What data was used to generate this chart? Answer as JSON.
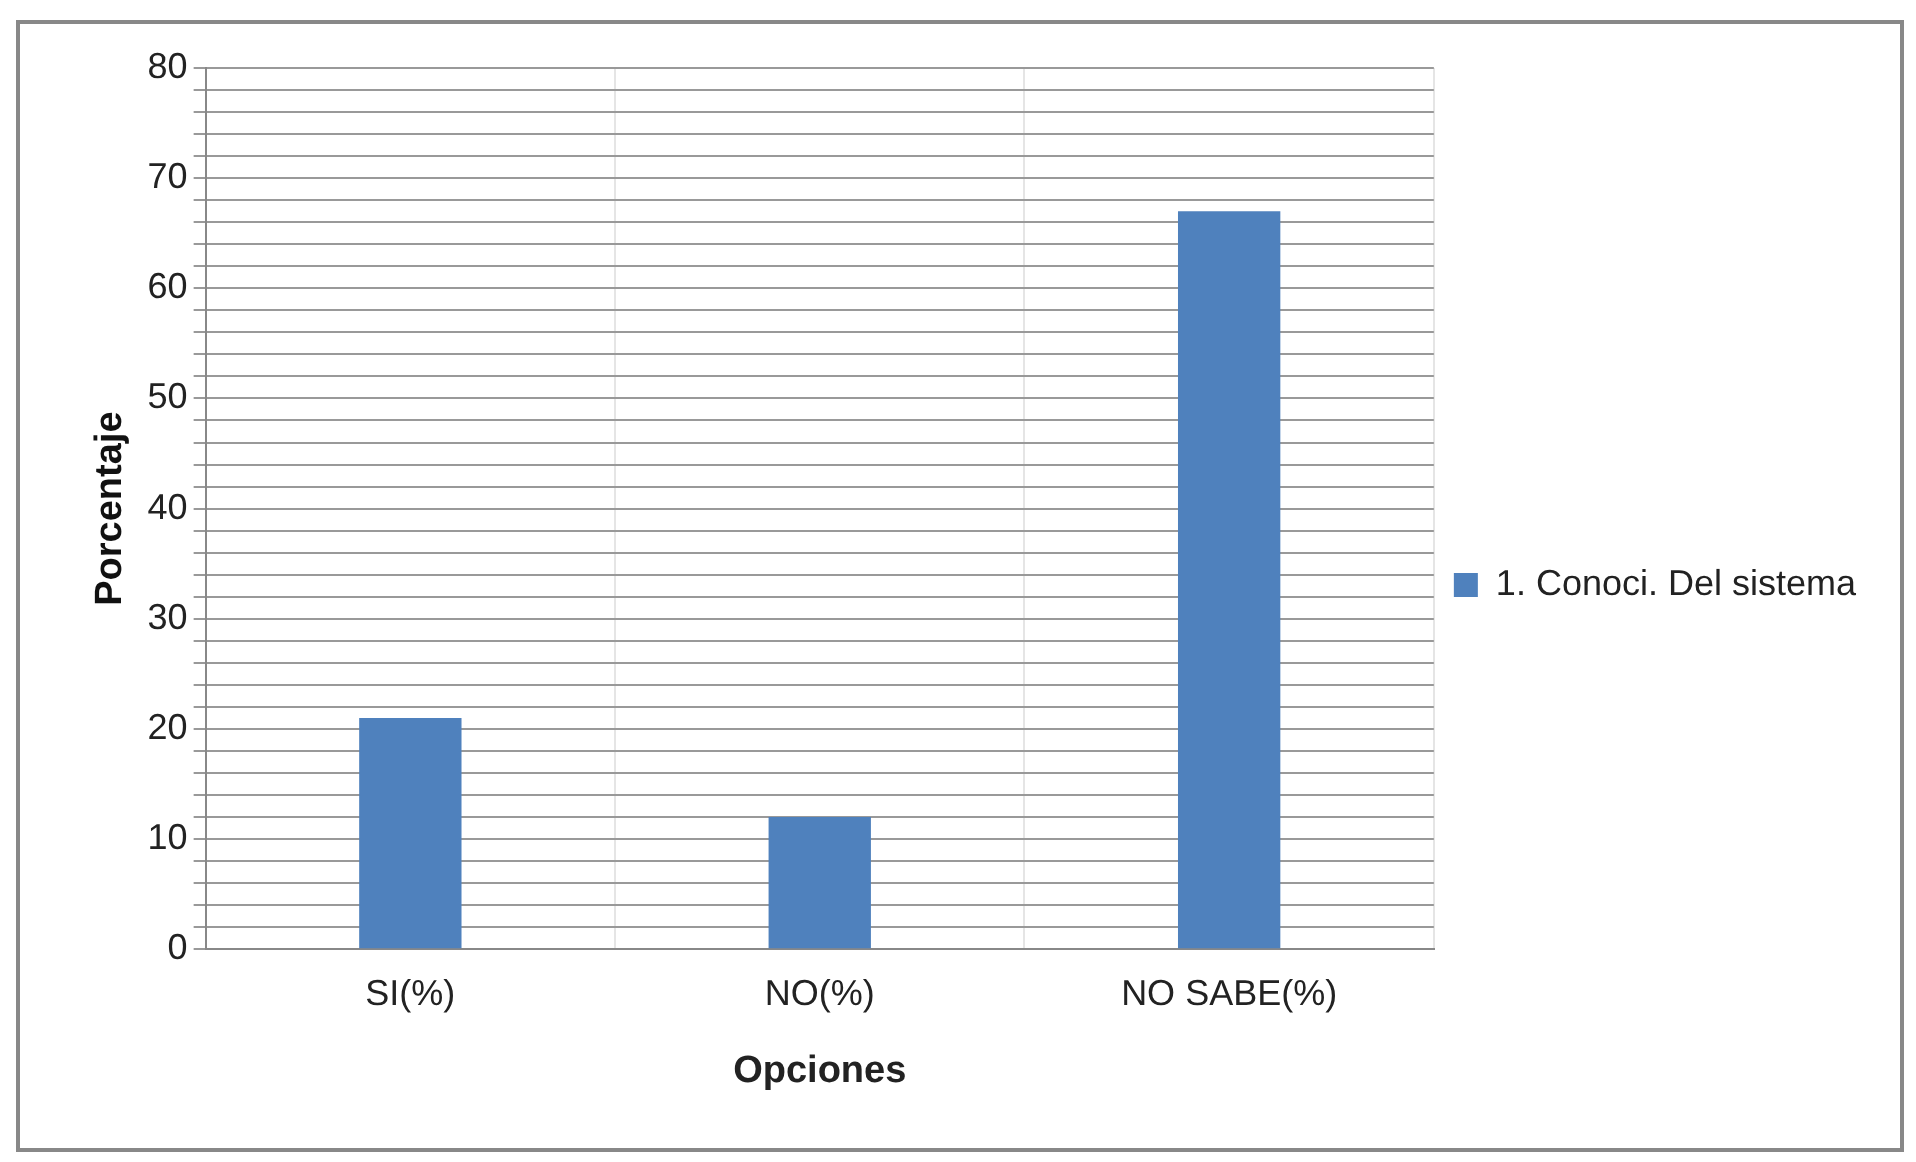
{
  "chart_data": {
    "type": "bar",
    "xlabel": "Opciones",
    "ylabel": "Porcentaje",
    "categories": [
      "SI(%)",
      "NO(%)",
      "NO SABE(%)"
    ],
    "series": [
      {
        "name": "1. Conoci. Del sistema",
        "color": "#4f81bd",
        "values": [
          21,
          12,
          67
        ]
      }
    ],
    "ylim": [
      0,
      80
    ],
    "yticks": [
      0,
      {
        "value": 2,
        "label": null
      },
      {
        "value": 4,
        "label": null
      },
      {
        "value": 6,
        "label": null
      },
      {
        "value": 8,
        "label": null
      },
      10,
      {
        "value": 12,
        "label": null
      },
      {
        "value": 14,
        "label": null
      },
      {
        "value": 16,
        "label": null
      },
      {
        "value": 18,
        "label": null
      },
      20,
      {
        "value": 22,
        "label": null
      },
      {
        "value": 24,
        "label": null
      },
      {
        "value": 26,
        "label": null
      },
      {
        "value": 28,
        "label": null
      },
      30,
      {
        "value": 32,
        "label": null
      },
      {
        "value": 34,
        "label": null
      },
      {
        "value": 36,
        "label": null
      },
      {
        "value": 38,
        "label": null
      },
      40,
      {
        "value": 42,
        "label": null
      },
      {
        "value": 44,
        "label": null
      },
      {
        "value": 46,
        "label": null
      },
      {
        "value": 48,
        "label": null
      },
      50,
      {
        "value": 52,
        "label": null
      },
      {
        "value": 54,
        "label": null
      },
      {
        "value": 56,
        "label": null
      },
      {
        "value": 58,
        "label": null
      },
      60,
      {
        "value": 62,
        "label": null
      },
      {
        "value": 64,
        "label": null
      },
      {
        "value": 66,
        "label": null
      },
      {
        "value": 68,
        "label": null
      },
      70,
      {
        "value": 72,
        "label": null
      },
      {
        "value": 74,
        "label": null
      },
      {
        "value": 76,
        "label": null
      },
      {
        "value": 78,
        "label": null
      },
      80
    ],
    "grid": true,
    "legend": "right"
  }
}
